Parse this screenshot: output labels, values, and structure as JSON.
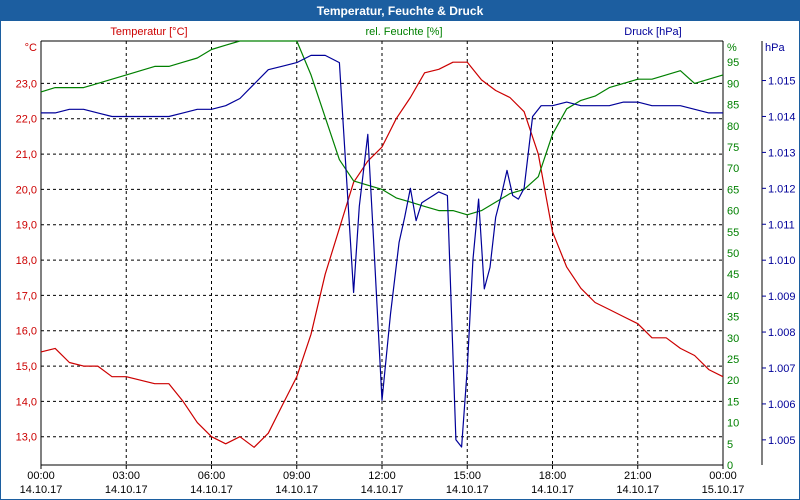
{
  "window": {
    "title": "Temperatur, Feuchte & Druck"
  },
  "colors": {
    "temperature": "#cc0000",
    "humidity": "#008000",
    "pressure": "#000099",
    "titlebar": "#1c5ea0",
    "grid": "#000000"
  },
  "chart_data": {
    "type": "line",
    "title": "Temperatur, Feuchte & Druck",
    "grid": true,
    "x_ticks": [
      {
        "time": "00:00",
        "date": "14.10.17"
      },
      {
        "time": "03:00",
        "date": "14.10.17"
      },
      {
        "time": "06:00",
        "date": "14.10.17"
      },
      {
        "time": "09:00",
        "date": "14.10.17"
      },
      {
        "time": "12:00",
        "date": "14.10.17"
      },
      {
        "time": "15:00",
        "date": "14.10.17"
      },
      {
        "time": "18:00",
        "date": "14.10.17"
      },
      {
        "time": "21:00",
        "date": "14.10.17"
      },
      {
        "time": "00:00",
        "date": "15.10.17"
      }
    ],
    "axes": {
      "temperature": {
        "label": "Temperatur [°C]",
        "unit": "°C",
        "range": [
          12.2,
          24.2
        ],
        "ticks": [
          13.0,
          14.0,
          15.0,
          16.0,
          17.0,
          18.0,
          19.0,
          20.0,
          21.0,
          22.0,
          23.0
        ],
        "tick_labels": [
          "13,0",
          "14,0",
          "15,0",
          "16,0",
          "17,0",
          "18,0",
          "19,0",
          "20,0",
          "21,0",
          "22,0",
          "23,0"
        ]
      },
      "humidity": {
        "label": "rel. Feuchte [%]",
        "unit": "%",
        "range": [
          0,
          100
        ],
        "ticks": [
          0,
          5,
          10,
          15,
          20,
          25,
          30,
          35,
          40,
          45,
          50,
          55,
          60,
          65,
          70,
          75,
          80,
          85,
          90,
          95
        ],
        "tick_labels": [
          "0",
          "5",
          "10",
          "15",
          "20",
          "25",
          "30",
          "35",
          "40",
          "45",
          "50",
          "55",
          "60",
          "65",
          "70",
          "75",
          "80",
          "85",
          "90",
          "95"
        ]
      },
      "pressure": {
        "label": "Druck [hPa]",
        "unit": "hPa",
        "range": [
          1.0043,
          1.0161
        ],
        "ticks": [
          1.005,
          1.006,
          1.007,
          1.008,
          1.009,
          1.01,
          1.011,
          1.012,
          1.013,
          1.014,
          1.015
        ],
        "tick_labels": [
          "1.005",
          "1.006",
          "1.007",
          "1.008",
          "1.009",
          "1.010",
          "1.011",
          "1.012",
          "1.013",
          "1.014",
          "1.015"
        ]
      }
    },
    "series": [
      {
        "name": "Temperatur [°C]",
        "axis": "temperature",
        "x_hours": [
          0,
          0.5,
          1,
          1.5,
          2,
          2.5,
          3,
          3.5,
          4,
          4.5,
          5,
          5.5,
          6,
          6.5,
          7,
          7.5,
          8,
          8.5,
          9,
          9.5,
          10,
          10.5,
          11,
          11.5,
          12,
          12.5,
          13,
          13.5,
          14,
          14.5,
          15,
          15.5,
          16,
          16.5,
          17,
          17.5,
          18,
          18.5,
          19,
          19.5,
          20,
          20.5,
          21,
          21.5,
          22,
          22.5,
          23,
          23.5,
          24
        ],
        "values": [
          15.4,
          15.5,
          15.1,
          15.0,
          15.0,
          14.7,
          14.7,
          14.6,
          14.5,
          14.5,
          14.0,
          13.4,
          13.0,
          12.8,
          13.0,
          12.7,
          13.1,
          13.9,
          14.7,
          15.9,
          17.6,
          18.9,
          20.2,
          20.8,
          21.2,
          22.0,
          22.6,
          23.3,
          23.4,
          23.6,
          23.6,
          23.1,
          22.8,
          22.6,
          22.2,
          21.0,
          18.8,
          17.8,
          17.2,
          16.8,
          16.6,
          16.4,
          16.2,
          15.8,
          15.8,
          15.5,
          15.3,
          14.9,
          14.7
        ]
      },
      {
        "name": "rel. Feuchte [%]",
        "axis": "humidity",
        "x_hours": [
          0,
          0.5,
          1,
          1.5,
          2,
          2.5,
          3,
          3.5,
          4,
          4.5,
          5,
          5.5,
          6,
          6.5,
          7,
          7.5,
          8,
          8.5,
          9,
          9.5,
          10,
          10.5,
          11,
          11.5,
          12,
          12.5,
          13,
          13.5,
          14,
          14.5,
          15,
          15.5,
          16,
          16.5,
          17,
          17.5,
          18,
          18.5,
          19,
          19.5,
          20,
          20.5,
          21,
          21.5,
          22,
          22.5,
          23,
          23.5,
          24
        ],
        "values": [
          88,
          89,
          89,
          89,
          90,
          91,
          92,
          93,
          94,
          94,
          95,
          96,
          98,
          99,
          100,
          100,
          100,
          100,
          100,
          92,
          82,
          72,
          67,
          66,
          65,
          63,
          62,
          61,
          60,
          60,
          59,
          60,
          62,
          64,
          65,
          68,
          78,
          84,
          86,
          87,
          89,
          90,
          91,
          91,
          92,
          93,
          90,
          91,
          92
        ]
      },
      {
        "name": "Druck [hPa]",
        "axis": "pressure",
        "x_hours": [
          0,
          0.5,
          1,
          1.5,
          2,
          2.5,
          3,
          3.5,
          4,
          4.5,
          5,
          5.5,
          6,
          6.5,
          7,
          7.5,
          8,
          8.5,
          9,
          9.5,
          10,
          10.5,
          11,
          11.2,
          11.5,
          11.7,
          12,
          12.3,
          12.6,
          12.8,
          13,
          13.2,
          13.4,
          13.6,
          13.8,
          14.0,
          14.3,
          14.6,
          14.8,
          15.0,
          15.2,
          15.4,
          15.6,
          15.8,
          16.0,
          16.2,
          16.4,
          16.6,
          16.8,
          17,
          17.3,
          17.6,
          18,
          18.5,
          19,
          19.5,
          20,
          20.5,
          21,
          21.5,
          22,
          22.5,
          23,
          23.5,
          24
        ],
        "values": [
          1.0141,
          1.0141,
          1.0142,
          1.0142,
          1.0141,
          1.014,
          1.014,
          1.014,
          1.014,
          1.014,
          1.0141,
          1.0142,
          1.0142,
          1.0143,
          1.0145,
          1.0149,
          1.0153,
          1.0154,
          1.0155,
          1.0157,
          1.0157,
          1.0155,
          1.0091,
          1.0115,
          1.0135,
          1.0106,
          1.0061,
          1.0085,
          1.0105,
          1.0112,
          1.012,
          1.0111,
          1.0116,
          1.0117,
          1.0118,
          1.0119,
          1.0118,
          1.005,
          1.0048,
          1.007,
          1.01,
          1.0117,
          1.0092,
          1.0098,
          1.0112,
          1.0118,
          1.0125,
          1.0118,
          1.0117,
          1.012,
          1.014,
          1.0143,
          1.0143,
          1.0144,
          1.0143,
          1.0143,
          1.0143,
          1.0144,
          1.0144,
          1.0143,
          1.0143,
          1.0143,
          1.0142,
          1.0141,
          1.0141
        ]
      }
    ]
  }
}
